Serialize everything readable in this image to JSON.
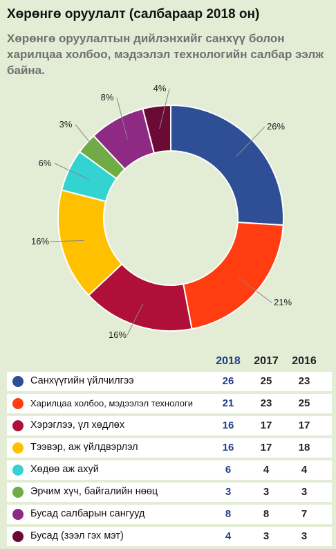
{
  "title": "Хөрөнгө оруулалт (салбараар 2018 он)",
  "subtitle": "Хөрөнгө оруулалтын дийлэнхийг санхүү болон харилцаа холбоо, мэдээлэл технологийн салбар ээлж байна.",
  "chart_data": {
    "type": "pie",
    "donut": true,
    "categories": [
      "Санхүүгийн үйлчилгээ",
      "Харилцаа холбоо, мэдээлэл технологи",
      "Хэрэглээ, үл хөдлөх",
      "Тээвэр, аж үйлдвэрлэл",
      "Хөдөө аж ахуй",
      "Эрчим хүч, байгалийн нөөц",
      "Бусад салбарын сангууд",
      "Бусад (зээл гэх мэт)"
    ],
    "colors": [
      "#2e4f95",
      "#ff3d10",
      "#b01038",
      "#ffc000",
      "#33d3d1",
      "#6fac44",
      "#8e2a83",
      "#6b0a35"
    ],
    "values": [
      26,
      21,
      16,
      16,
      6,
      3,
      8,
      4
    ],
    "slice_labels": [
      "26%",
      "21%",
      "16%",
      "16%",
      "6%",
      "3%",
      "8%",
      "4%"
    ]
  },
  "table": {
    "years": [
      "2018",
      "2017",
      "2016"
    ],
    "rows": [
      {
        "label": "Санхүүгийн үйлчилгээ",
        "values": [
          "26",
          "25",
          "23"
        ]
      },
      {
        "label": "Харилцаа холбоо, мэдээлэл технологи",
        "values": [
          "21",
          "23",
          "25"
        ]
      },
      {
        "label": "Хэрэглээ, үл хөдлөх",
        "values": [
          "16",
          "17",
          "17"
        ]
      },
      {
        "label": "Тээвэр, аж үйлдвэрлэл",
        "values": [
          "16",
          "17",
          "18"
        ]
      },
      {
        "label": "Хөдөө аж ахуй",
        "values": [
          "6",
          "4",
          "4"
        ]
      },
      {
        "label": "Эрчим хүч, байгалийн нөөц",
        "values": [
          "3",
          "3",
          "3"
        ]
      },
      {
        "label": "Бусад салбарын сангууд",
        "values": [
          "8",
          "8",
          "7"
        ]
      },
      {
        "label": "Бусад (зээл гэх мэт)",
        "values": [
          "4",
          "3",
          "3"
        ]
      }
    ]
  }
}
